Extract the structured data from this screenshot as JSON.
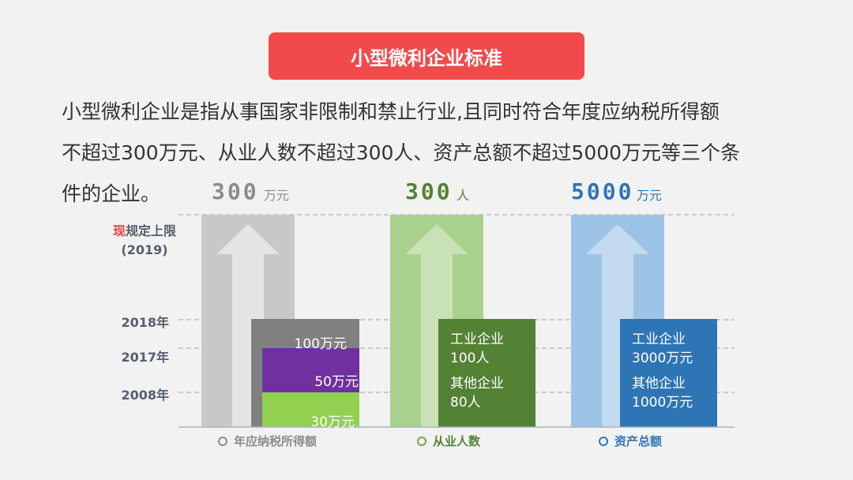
{
  "header": {
    "title": "小型微利企业标准"
  },
  "intro": {
    "line1": "小型微利企业是指从事国家非限制和禁止行业,且同时符合年度应纳税所得额",
    "line2": "不超过300万元、从业人数不超过300人、资产总额不超过5000万元等三个条",
    "line3": "件的企业。"
  },
  "labels": {
    "current_hl": "现",
    "current_rest": "规定上限",
    "current_year": "(2019)",
    "year_2018": "2018年",
    "year_2017": "2017年",
    "year_2008": "2008年"
  },
  "chart_data": {
    "type": "bar",
    "columns": [
      {
        "legend": "年应纳税所得额",
        "current_value": "300",
        "current_unit": "万元",
        "color": "#c8c8c8",
        "history": [
          {
            "year": "2018年",
            "label": "100万元",
            "color": "#808080"
          },
          {
            "year": "2017年",
            "label": "50万元",
            "color": "#7030a0"
          },
          {
            "year": "2008年",
            "label": "30万元",
            "color": "#92d050"
          }
        ]
      },
      {
        "legend": "从业人数",
        "current_value": "300",
        "current_unit": "人",
        "color": "#a9d18e",
        "history_box": {
          "line1": "工业企业",
          "line2": "100人",
          "line3": "其他企业",
          "line4": "80人",
          "color": "#548235"
        }
      },
      {
        "legend": "资产总额",
        "current_value": "5000",
        "current_unit": "万元",
        "color": "#9dc3e6",
        "history_box": {
          "line1": "工业企业",
          "line2": "3000万元",
          "line3": "其他企业",
          "line4": "1000万元",
          "color": "#2e75b6"
        }
      }
    ],
    "accent_colors": {
      "gray": "#808080",
      "green": "#548235",
      "blue": "#2e75b6"
    }
  }
}
